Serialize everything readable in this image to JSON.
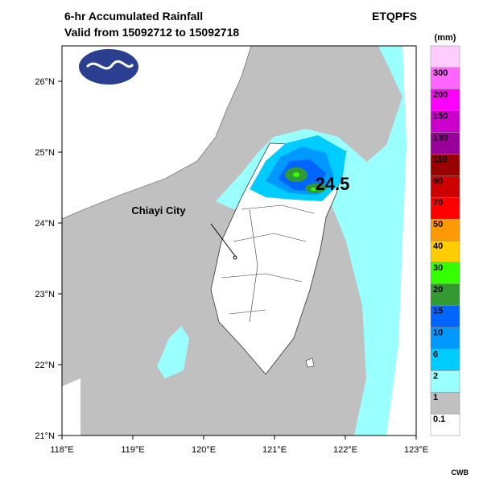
{
  "header": {
    "title": "6-hr Accumulated Rainfall",
    "subtitle": "Valid from 15092712 to 15092718",
    "product": "ETQPFS"
  },
  "map": {
    "lon_labels": [
      "118°E",
      "119°E",
      "120°E",
      "121°E",
      "122°E",
      "123°E"
    ],
    "lat_labels": [
      "21°N",
      "22°N",
      "23°N",
      "24°N",
      "25°N",
      "26°N"
    ],
    "annotations": {
      "city": "Chiayi City",
      "max_value": 24.5
    }
  },
  "legend": {
    "unit": "(mm)",
    "levels": [
      {
        "label": 0.1,
        "color": "#ffffff"
      },
      {
        "label": 1,
        "color": "#c0c0c0"
      },
      {
        "label": 2,
        "color": "#99ffff"
      },
      {
        "label": 6,
        "color": "#00ccff"
      },
      {
        "label": 10,
        "color": "#0099ff"
      },
      {
        "label": 15,
        "color": "#0066ff"
      },
      {
        "label": 20,
        "color": "#339933"
      },
      {
        "label": 30,
        "color": "#33ff00"
      },
      {
        "label": 40,
        "color": "#ffcc00"
      },
      {
        "label": 50,
        "color": "#ff9900"
      },
      {
        "label": 70,
        "color": "#ff0000"
      },
      {
        "label": 90,
        "color": "#cc0000"
      },
      {
        "label": 110,
        "color": "#990000"
      },
      {
        "label": 130,
        "color": "#990099"
      },
      {
        "label": 150,
        "color": "#cc00cc"
      },
      {
        "label": 200,
        "color": "#ff00ff"
      },
      {
        "label": 300,
        "color": "#ff66ff"
      },
      {
        "color": "#ffccff"
      }
    ]
  },
  "footer": {
    "credit": "CWB"
  }
}
